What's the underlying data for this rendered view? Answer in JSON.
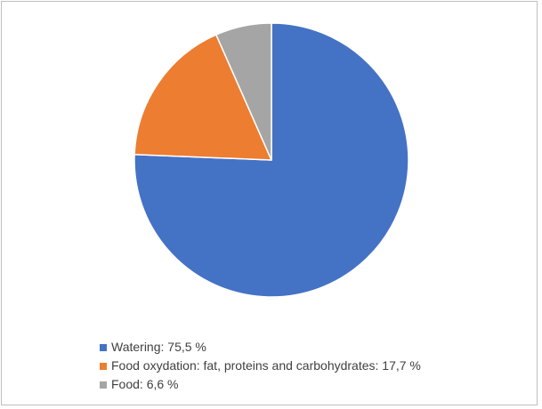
{
  "chart_data": {
    "type": "pie",
    "title": "",
    "legend_position": "bottom",
    "start_angle_deg": 0,
    "direction": "clockwise",
    "slices": [
      {
        "label": "Watering: 75,5 %",
        "value": 75.5,
        "color": "#4472c4"
      },
      {
        "label": "Food oxydation: fat, proteins and carbohydrates: 17,7 %",
        "value": 17.7,
        "color": "#ed7d31"
      },
      {
        "label": "Food: 6,6 %",
        "value": 6.6,
        "color": "#a5a5a5"
      }
    ]
  }
}
